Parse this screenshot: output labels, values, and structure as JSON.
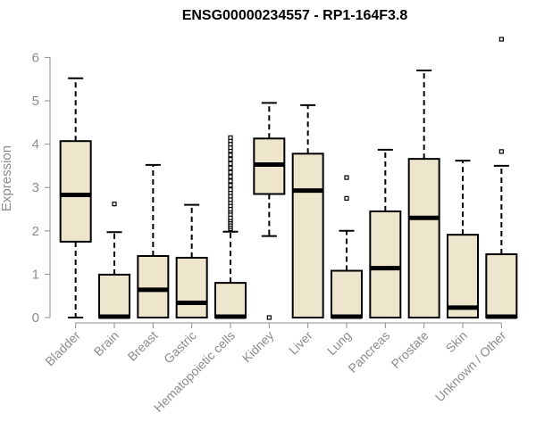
{
  "chart_data": {
    "type": "boxplot",
    "title": "ENSG00000234557 - RP1-164F3.8",
    "xlabel": "",
    "ylabel": "Expression",
    "ylim": [
      0,
      6.6
    ],
    "yticks": [
      0,
      1,
      2,
      3,
      4,
      5,
      6
    ],
    "grid": false,
    "colors": {
      "box_fill": "#ede6cc",
      "stroke": "#000000",
      "axis": "#8c8c8c",
      "label": "#8c8c8c"
    },
    "categories": [
      "Bladder",
      "Brain",
      "Breast",
      "Gastric",
      "Hematopoietic cells",
      "Kidney",
      "Liver",
      "Lung",
      "Pancreas",
      "Prostate",
      "Skin",
      "Unknown / Other"
    ],
    "boxes": [
      {
        "category": "Bladder",
        "whisker_low": 0,
        "q1": 1.75,
        "median": 2.83,
        "q3": 4.07,
        "whisker_high": 5.52,
        "outliers": []
      },
      {
        "category": "Brain",
        "whisker_low": 0,
        "q1": 0,
        "median": 0.02,
        "q3": 0.99,
        "whisker_high": 1.97,
        "outliers": [
          2.62
        ]
      },
      {
        "category": "Breast",
        "whisker_low": 0,
        "q1": 0,
        "median": 0.64,
        "q3": 1.42,
        "whisker_high": 3.52,
        "outliers": []
      },
      {
        "category": "Gastric",
        "whisker_low": 0,
        "q1": 0,
        "median": 0.34,
        "q3": 1.38,
        "whisker_high": 2.6,
        "outliers": []
      },
      {
        "category": "Hematopoietic cells",
        "whisker_low": 0,
        "q1": 0,
        "median": 0.02,
        "q3": 0.8,
        "whisker_high": 1.98,
        "outliers": [
          2.05,
          2.1,
          2.15,
          2.2,
          2.25,
          2.3,
          2.38,
          2.45,
          2.5,
          2.58,
          2.65,
          2.72,
          2.8,
          2.88,
          2.95,
          3.05,
          3.15,
          3.25,
          3.35,
          3.45,
          3.55,
          3.65,
          3.75,
          3.85,
          3.92,
          4.0,
          4.08,
          4.15
        ]
      },
      {
        "category": "Kidney",
        "whisker_low": 1.88,
        "q1": 2.85,
        "median": 3.53,
        "q3": 4.13,
        "whisker_high": 4.95,
        "outliers": [
          0
        ]
      },
      {
        "category": "Liver",
        "whisker_low": 0,
        "q1": 0,
        "median": 2.93,
        "q3": 3.78,
        "whisker_high": 4.9,
        "outliers": []
      },
      {
        "category": "Lung",
        "whisker_low": 0,
        "q1": 0,
        "median": 0.02,
        "q3": 1.08,
        "whisker_high": 2.0,
        "outliers": [
          2.75,
          3.23
        ]
      },
      {
        "category": "Pancreas",
        "whisker_low": 0,
        "q1": 0,
        "median": 1.14,
        "q3": 2.45,
        "whisker_high": 3.87,
        "outliers": []
      },
      {
        "category": "Prostate",
        "whisker_low": 0,
        "q1": 0,
        "median": 2.3,
        "q3": 3.66,
        "whisker_high": 5.7,
        "outliers": []
      },
      {
        "category": "Skin",
        "whisker_low": 0,
        "q1": 0,
        "median": 0.23,
        "q3": 1.91,
        "whisker_high": 3.62,
        "outliers": []
      },
      {
        "category": "Unknown / Other",
        "whisker_low": 0,
        "q1": 0,
        "median": 0.02,
        "q3": 1.46,
        "whisker_high": 3.5,
        "outliers": [
          3.83,
          6.42
        ]
      }
    ]
  }
}
